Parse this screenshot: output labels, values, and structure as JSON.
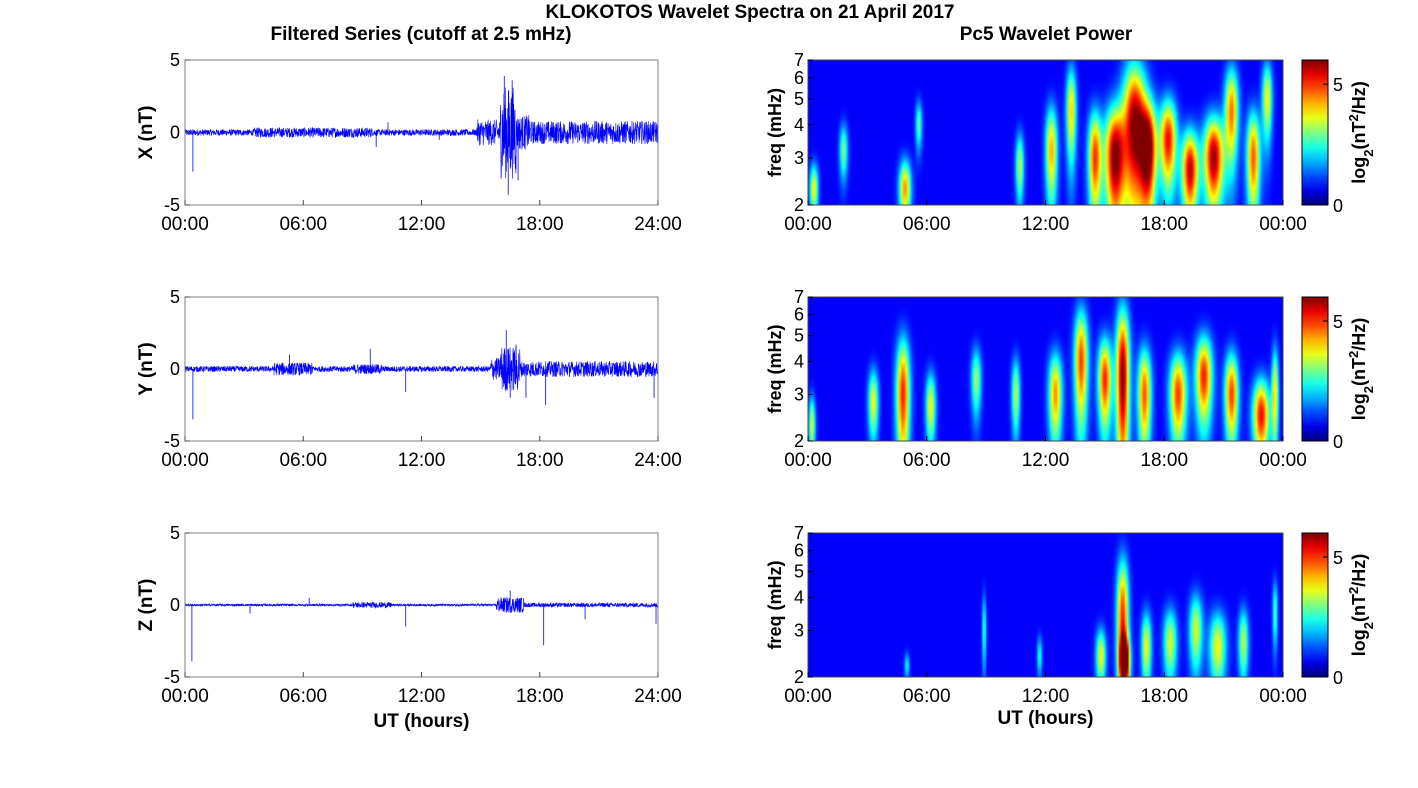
{
  "figure": {
    "title": "KLOKOTOS Wavelet Spectra on 21 April 2017",
    "left_column_title": "Filtered Series (cutoff at 2.5 mHz)",
    "right_column_title": "Pc5 Wavelet Power"
  },
  "chart_data": [
    {
      "type": "line",
      "panel": "X",
      "ylabel": "X (nT)",
      "xlabel": "",
      "xlim": [
        0,
        24
      ],
      "ylim": [
        -5,
        5
      ],
      "xticks": [
        "00:00",
        "06:00",
        "12:00",
        "18:00",
        "24:00"
      ],
      "yticks": [
        "-5",
        "0",
        "5"
      ],
      "color": "#0000ff",
      "background_amplitude": 0.22,
      "active_segments": [
        {
          "start": 3.5,
          "end": 9.5,
          "amplitude": 0.35
        },
        {
          "start": 14.8,
          "end": 16.0,
          "amplitude": 0.9
        },
        {
          "start": 16.0,
          "end": 16.8,
          "amplitude": 3.2
        },
        {
          "start": 16.8,
          "end": 17.5,
          "amplitude": 1.2
        },
        {
          "start": 17.5,
          "end": 24.0,
          "amplitude": 0.8
        }
      ],
      "spikes": [
        {
          "t": 0.4,
          "v": -2.7
        },
        {
          "t": 9.7,
          "v": -1.0
        },
        {
          "t": 10.3,
          "v": 0.7
        },
        {
          "t": 12.9,
          "v": -0.5
        },
        {
          "t": 16.2,
          "v": 3.9
        },
        {
          "t": 16.4,
          "v": -4.3
        },
        {
          "t": 16.6,
          "v": 3.6
        },
        {
          "t": 16.9,
          "v": -3.3
        },
        {
          "t": 24.0,
          "v": -2.5
        }
      ]
    },
    {
      "type": "line",
      "panel": "Y",
      "ylabel": "Y (nT)",
      "xlabel": "",
      "xlim": [
        0,
        24
      ],
      "ylim": [
        -5,
        5
      ],
      "xticks": [
        "00:00",
        "06:00",
        "12:00",
        "18:00",
        "24:00"
      ],
      "yticks": [
        "-5",
        "0",
        "5"
      ],
      "color": "#0000ff",
      "background_amplitude": 0.2,
      "active_segments": [
        {
          "start": 4.5,
          "end": 6.5,
          "amplitude": 0.45
        },
        {
          "start": 8.5,
          "end": 10.0,
          "amplitude": 0.35
        },
        {
          "start": 15.5,
          "end": 16.0,
          "amplitude": 0.8
        },
        {
          "start": 16.0,
          "end": 17.0,
          "amplitude": 1.6
        },
        {
          "start": 17.0,
          "end": 24.0,
          "amplitude": 0.55
        }
      ],
      "spikes": [
        {
          "t": 0.4,
          "v": -3.5
        },
        {
          "t": 5.3,
          "v": 1.0
        },
        {
          "t": 9.4,
          "v": 1.4
        },
        {
          "t": 11.2,
          "v": -1.6
        },
        {
          "t": 16.3,
          "v": 2.7
        },
        {
          "t": 16.5,
          "v": -2.0
        },
        {
          "t": 16.8,
          "v": 1.7
        },
        {
          "t": 17.3,
          "v": -2.0
        },
        {
          "t": 18.3,
          "v": -2.5
        },
        {
          "t": 23.8,
          "v": -2.0
        }
      ]
    },
    {
      "type": "line",
      "panel": "Z",
      "ylabel": "Z (nT)",
      "xlabel": "UT (hours)",
      "xlim": [
        0,
        24
      ],
      "ylim": [
        -5,
        5
      ],
      "xticks": [
        "00:00",
        "06:00",
        "12:00",
        "18:00",
        "24:00"
      ],
      "yticks": [
        "-5",
        "0",
        "5"
      ],
      "color": "#0000ff",
      "background_amplitude": 0.08,
      "active_segments": [
        {
          "start": 8.5,
          "end": 10.5,
          "amplitude": 0.2
        },
        {
          "start": 15.8,
          "end": 17.2,
          "amplitude": 0.55
        },
        {
          "start": 17.2,
          "end": 24.0,
          "amplitude": 0.15
        }
      ],
      "spikes": [
        {
          "t": 0.35,
          "v": -3.9
        },
        {
          "t": 3.3,
          "v": -0.6
        },
        {
          "t": 6.3,
          "v": 0.5
        },
        {
          "t": 11.2,
          "v": -1.5
        },
        {
          "t": 16.5,
          "v": 1.0
        },
        {
          "t": 18.2,
          "v": -2.8
        },
        {
          "t": 20.3,
          "v": -1.0
        },
        {
          "t": 23.9,
          "v": -1.3
        }
      ]
    },
    {
      "type": "heatmap",
      "panel": "X power",
      "ylabel": "freq (mHz)",
      "xlabel": "",
      "xlim": [
        0,
        24
      ],
      "ylim": [
        2,
        7
      ],
      "yscale": "log",
      "xticks": [
        "00:00",
        "06:00",
        "12:00",
        "18:00",
        "00:00"
      ],
      "yticks": [
        "2",
        "3",
        "4",
        "5",
        "6",
        "7"
      ],
      "colorbar_label": "log2(nT2/Hz)",
      "colorbar_ticks": [
        "0",
        "5"
      ],
      "colorbar_range": [
        0,
        6
      ],
      "blobs": [
        {
          "t": 0.3,
          "f": 2.3,
          "w": 0.25,
          "h": 0.6,
          "p": 3.5
        },
        {
          "t": 1.8,
          "f": 3.2,
          "w": 0.25,
          "h": 0.9,
          "p": 2.6
        },
        {
          "t": 4.9,
          "f": 2.3,
          "w": 0.35,
          "h": 0.7,
          "p": 4.2
        },
        {
          "t": 5.6,
          "f": 4.0,
          "w": 0.2,
          "h": 1.0,
          "p": 2.4
        },
        {
          "t": 10.7,
          "f": 2.8,
          "w": 0.25,
          "h": 1.0,
          "p": 3.0
        },
        {
          "t": 12.3,
          "f": 3.2,
          "w": 0.35,
          "h": 1.6,
          "p": 4.0
        },
        {
          "t": 13.3,
          "f": 4.5,
          "w": 0.3,
          "h": 2.2,
          "p": 3.8
        },
        {
          "t": 14.5,
          "f": 3.0,
          "w": 0.4,
          "h": 1.6,
          "p": 4.8
        },
        {
          "t": 15.5,
          "f": 3.0,
          "w": 0.6,
          "h": 1.8,
          "p": 6.0
        },
        {
          "t": 16.5,
          "f": 4.0,
          "w": 0.7,
          "h": 3.0,
          "p": 6.0
        },
        {
          "t": 17.2,
          "f": 3.2,
          "w": 0.5,
          "h": 1.8,
          "p": 5.8
        },
        {
          "t": 18.2,
          "f": 3.5,
          "w": 0.5,
          "h": 1.6,
          "p": 5.2
        },
        {
          "t": 19.3,
          "f": 2.7,
          "w": 0.5,
          "h": 1.2,
          "p": 5.6
        },
        {
          "t": 20.5,
          "f": 3.0,
          "w": 0.6,
          "h": 1.4,
          "p": 5.9
        },
        {
          "t": 21.4,
          "f": 4.5,
          "w": 0.4,
          "h": 2.2,
          "p": 4.4
        },
        {
          "t": 22.5,
          "f": 3.0,
          "w": 0.4,
          "h": 1.6,
          "p": 4.6
        },
        {
          "t": 23.2,
          "f": 5.0,
          "w": 0.3,
          "h": 2.0,
          "p": 3.5
        }
      ]
    },
    {
      "type": "heatmap",
      "panel": "Y power",
      "ylabel": "freq (mHz)",
      "xlabel": "",
      "xlim": [
        0,
        24
      ],
      "ylim": [
        2,
        7
      ],
      "yscale": "log",
      "xticks": [
        "00:00",
        "06:00",
        "12:00",
        "18:00",
        "00:00"
      ],
      "yticks": [
        "2",
        "3",
        "4",
        "5",
        "6",
        "7"
      ],
      "colorbar_label": "log2(nT2/Hz)",
      "colorbar_ticks": [
        "0",
        "5"
      ],
      "colorbar_range": [
        0,
        6
      ],
      "blobs": [
        {
          "t": 0.2,
          "f": 2.3,
          "w": 0.2,
          "h": 0.7,
          "p": 3.2
        },
        {
          "t": 3.3,
          "f": 2.8,
          "w": 0.3,
          "h": 1.0,
          "p": 3.4
        },
        {
          "t": 4.8,
          "f": 3.0,
          "w": 0.4,
          "h": 2.0,
          "p": 5.0
        },
        {
          "t": 6.2,
          "f": 2.7,
          "w": 0.3,
          "h": 1.0,
          "p": 3.4
        },
        {
          "t": 8.5,
          "f": 3.4,
          "w": 0.3,
          "h": 1.2,
          "p": 2.8
        },
        {
          "t": 10.5,
          "f": 3.0,
          "w": 0.25,
          "h": 1.2,
          "p": 3.0
        },
        {
          "t": 12.5,
          "f": 3.0,
          "w": 0.4,
          "h": 1.4,
          "p": 4.2
        },
        {
          "t": 13.8,
          "f": 4.0,
          "w": 0.4,
          "h": 2.4,
          "p": 4.8
        },
        {
          "t": 15.0,
          "f": 3.4,
          "w": 0.4,
          "h": 1.6,
          "p": 5.0
        },
        {
          "t": 15.9,
          "f": 3.5,
          "w": 0.4,
          "h": 3.0,
          "p": 6.0
        },
        {
          "t": 17.0,
          "f": 3.0,
          "w": 0.4,
          "h": 1.6,
          "p": 4.6
        },
        {
          "t": 18.7,
          "f": 3.0,
          "w": 0.5,
          "h": 1.4,
          "p": 4.8
        },
        {
          "t": 20.0,
          "f": 3.5,
          "w": 0.5,
          "h": 1.6,
          "p": 5.0
        },
        {
          "t": 21.4,
          "f": 3.0,
          "w": 0.4,
          "h": 1.4,
          "p": 4.8
        },
        {
          "t": 22.9,
          "f": 2.5,
          "w": 0.5,
          "h": 1.0,
          "p": 5.2
        },
        {
          "t": 23.6,
          "f": 3.0,
          "w": 0.2,
          "h": 1.6,
          "p": 3.6
        }
      ]
    },
    {
      "type": "heatmap",
      "panel": "Z power",
      "ylabel": "freq (mHz)",
      "xlabel": "UT (hours)",
      "xlim": [
        0,
        24
      ],
      "ylim": [
        2,
        7
      ],
      "yscale": "log",
      "xticks": [
        "00:00",
        "06:00",
        "12:00",
        "18:00",
        "00:00"
      ],
      "yticks": [
        "2",
        "3",
        "4",
        "5",
        "6",
        "7"
      ],
      "colorbar_label": "log2(nT2/Hz)",
      "colorbar_ticks": [
        "0",
        "5"
      ],
      "colorbar_range": [
        0,
        6
      ],
      "blobs": [
        {
          "t": 5.0,
          "f": 2.2,
          "w": 0.15,
          "h": 0.3,
          "p": 1.8
        },
        {
          "t": 8.9,
          "f": 3.0,
          "w": 0.12,
          "h": 1.2,
          "p": 2.2
        },
        {
          "t": 11.7,
          "f": 2.4,
          "w": 0.15,
          "h": 0.5,
          "p": 2.0
        },
        {
          "t": 14.8,
          "f": 2.4,
          "w": 0.3,
          "h": 0.7,
          "p": 3.4
        },
        {
          "t": 15.9,
          "f": 3.3,
          "w": 0.35,
          "h": 2.4,
          "p": 5.0
        },
        {
          "t": 16.0,
          "f": 2.3,
          "w": 0.3,
          "h": 0.6,
          "p": 6.0
        },
        {
          "t": 17.1,
          "f": 2.6,
          "w": 0.3,
          "h": 1.0,
          "p": 3.4
        },
        {
          "t": 18.3,
          "f": 2.7,
          "w": 0.4,
          "h": 1.0,
          "p": 3.2
        },
        {
          "t": 19.6,
          "f": 3.0,
          "w": 0.4,
          "h": 1.2,
          "p": 3.2
        },
        {
          "t": 20.7,
          "f": 2.6,
          "w": 0.5,
          "h": 1.0,
          "p": 3.4
        },
        {
          "t": 22.0,
          "f": 2.7,
          "w": 0.3,
          "h": 1.0,
          "p": 3.0
        },
        {
          "t": 23.6,
          "f": 3.5,
          "w": 0.15,
          "h": 1.2,
          "p": 2.4
        }
      ]
    }
  ]
}
